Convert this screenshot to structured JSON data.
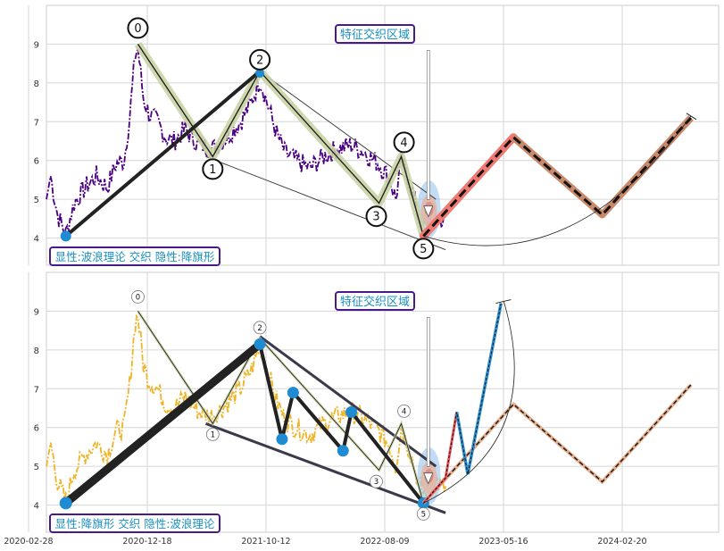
{
  "chart_data": [
    {
      "type": "line",
      "annotations": {
        "box_top": "特征交织区域",
        "box_bottom": "显性:波浪理论 交织 隐性:降旗形",
        "wave_labels": [
          "0",
          "1",
          "2",
          "3",
          "4",
          "5"
        ]
      },
      "y_ticks": [
        "4",
        "5",
        "6",
        "7",
        "8",
        "9"
      ],
      "ylim": [
        3.3,
        10.0
      ],
      "price_color": "#4b0082",
      "price_anchors": [
        [
          0,
          5.0
        ],
        [
          3,
          5.6
        ],
        [
          8,
          4.6
        ],
        [
          14,
          4.1
        ],
        [
          20,
          4.9
        ],
        [
          28,
          5.3
        ],
        [
          36,
          5.6
        ],
        [
          44,
          5.3
        ],
        [
          50,
          5.9
        ],
        [
          56,
          6.0
        ],
        [
          60,
          7.1
        ],
        [
          64,
          8.7
        ],
        [
          66,
          8.9
        ],
        [
          70,
          7.6
        ],
        [
          74,
          7.2
        ],
        [
          80,
          7.0
        ],
        [
          86,
          6.6
        ],
        [
          92,
          6.5
        ],
        [
          100,
          6.8
        ],
        [
          110,
          6.4
        ],
        [
          120,
          6.3
        ],
        [
          130,
          6.6
        ],
        [
          140,
          7.0
        ],
        [
          148,
          7.5
        ],
        [
          154,
          8.1
        ],
        [
          160,
          7.4
        ],
        [
          166,
          6.7
        ],
        [
          172,
          6.2
        ],
        [
          180,
          6.0
        ],
        [
          190,
          5.8
        ],
        [
          200,
          6.1
        ],
        [
          210,
          6.3
        ],
        [
          220,
          6.4
        ],
        [
          230,
          6.2
        ],
        [
          240,
          5.9
        ],
        [
          248,
          5.5
        ],
        [
          252,
          5.0
        ],
        [
          256,
          6.0
        ],
        [
          260,
          5.6
        ],
        [
          264,
          5.2
        ],
        [
          268,
          4.6
        ],
        [
          272,
          4.3
        ],
        [
          276,
          4.5
        ],
        [
          280,
          4.7
        ],
        [
          284,
          4.5
        ],
        [
          288,
          4.4
        ]
      ],
      "wave_points": [
        [
          66,
          9.0
        ],
        [
          120,
          6.1
        ],
        [
          154,
          8.3
        ],
        [
          240,
          4.9
        ],
        [
          256,
          6.1
        ],
        [
          272,
          4.05
        ]
      ],
      "flag_trend": [
        [
          14,
          4.05
        ],
        [
          154,
          8.3
        ]
      ],
      "forecast": [
        [
          272,
          4.05
        ],
        [
          337,
          6.6
        ],
        [
          401,
          4.6
        ],
        [
          465,
          7.1
        ]
      ],
      "wedge_upper": [
        [
          154,
          8.3
        ],
        [
          281,
          5.0
        ]
      ],
      "wedge_lower": [
        [
          115,
          6.1
        ],
        [
          288,
          3.7
        ]
      ]
    },
    {
      "type": "line",
      "annotations": {
        "box_top": "特征交织区域",
        "box_bottom": "显性:降旗形 交织 隐性:波浪理论",
        "wave_labels": [
          "0",
          "1",
          "2",
          "3",
          "4",
          "5"
        ]
      },
      "x_ticks": [
        "2020-02-28",
        "2020-12-18",
        "2021-10-12",
        "2022-08-09",
        "2023-05-16",
        "2024-02-20"
      ],
      "y_ticks": [
        "4",
        "5",
        "6",
        "7",
        "8",
        "9"
      ],
      "ylim": [
        3.3,
        10.0
      ],
      "price_color": "#f0b429",
      "price_anchors": [
        [
          0,
          5.0
        ],
        [
          3,
          5.6
        ],
        [
          8,
          4.6
        ],
        [
          14,
          4.1
        ],
        [
          20,
          4.9
        ],
        [
          28,
          5.3
        ],
        [
          36,
          5.6
        ],
        [
          44,
          5.3
        ],
        [
          50,
          5.9
        ],
        [
          56,
          6.0
        ],
        [
          60,
          7.1
        ],
        [
          64,
          8.7
        ],
        [
          66,
          8.9
        ],
        [
          70,
          7.6
        ],
        [
          74,
          7.2
        ],
        [
          80,
          7.0
        ],
        [
          86,
          6.6
        ],
        [
          92,
          6.5
        ],
        [
          100,
          6.8
        ],
        [
          110,
          6.4
        ],
        [
          120,
          6.3
        ],
        [
          130,
          6.6
        ],
        [
          140,
          7.0
        ],
        [
          148,
          7.5
        ],
        [
          154,
          8.1
        ],
        [
          160,
          7.4
        ],
        [
          166,
          6.7
        ],
        [
          172,
          6.2
        ],
        [
          180,
          6.0
        ],
        [
          190,
          5.8
        ],
        [
          200,
          6.1
        ],
        [
          210,
          6.3
        ],
        [
          220,
          6.4
        ],
        [
          230,
          6.2
        ],
        [
          240,
          5.9
        ],
        [
          248,
          5.5
        ],
        [
          252,
          5.0
        ],
        [
          256,
          6.0
        ],
        [
          260,
          5.6
        ],
        [
          264,
          5.2
        ],
        [
          268,
          4.6
        ],
        [
          272,
          4.3
        ],
        [
          276,
          4.5
        ],
        [
          280,
          4.7
        ],
        [
          284,
          4.5
        ],
        [
          288,
          4.4
        ]
      ],
      "wave_points": [
        [
          66,
          9.0
        ],
        [
          120,
          6.1
        ],
        [
          154,
          8.3
        ],
        [
          240,
          4.9
        ],
        [
          256,
          6.1
        ],
        [
          272,
          4.05
        ]
      ],
      "flag_points": [
        [
          14,
          4.05
        ],
        [
          154,
          8.15
        ],
        [
          170,
          5.7
        ],
        [
          178,
          6.9
        ],
        [
          214,
          5.4
        ],
        [
          220,
          6.4
        ],
        [
          272,
          4.05
        ]
      ],
      "forecast_dashed": [
        [
          272,
          4.05
        ],
        [
          337,
          6.6
        ],
        [
          401,
          4.6
        ],
        [
          465,
          7.1
        ]
      ],
      "forecast_zigzag": [
        [
          272,
          4.05
        ],
        [
          288,
          4.7
        ],
        [
          296,
          6.4
        ],
        [
          304,
          4.8
        ],
        [
          328,
          9.2
        ]
      ],
      "wedge_upper": [
        [
          154,
          8.35
        ],
        [
          281,
          5.0
        ]
      ],
      "wedge_lower": [
        [
          115,
          6.1
        ],
        [
          288,
          3.8
        ]
      ]
    }
  ]
}
